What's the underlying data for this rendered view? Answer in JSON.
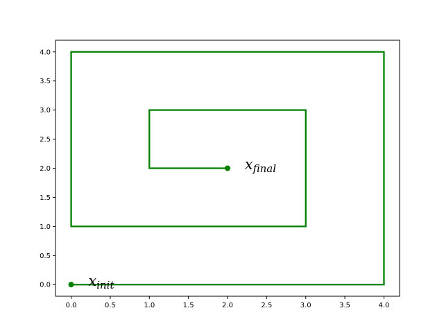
{
  "chart_data": {
    "type": "line",
    "title": "",
    "xlabel": "",
    "ylabel": "",
    "xlim": [
      -0.2,
      4.2
    ],
    "ylim": [
      -0.2,
      4.2
    ],
    "xticks": [
      0.0,
      0.5,
      1.0,
      1.5,
      2.0,
      2.5,
      3.0,
      3.5,
      4.0
    ],
    "yticks": [
      0.0,
      0.5,
      1.0,
      1.5,
      2.0,
      2.5,
      3.0,
      3.5,
      4.0
    ],
    "xtick_labels": [
      "0.0",
      "0.5",
      "1.0",
      "1.5",
      "2.0",
      "2.5",
      "3.0",
      "3.5",
      "4.0"
    ],
    "ytick_labels": [
      "0.0",
      "0.5",
      "1.0",
      "1.5",
      "2.0",
      "2.5",
      "3.0",
      "3.5",
      "4.0"
    ],
    "grid": false,
    "legend": "none",
    "color": "#008000",
    "series": [
      {
        "x": [
          0,
          4,
          4,
          0,
          0,
          3,
          3,
          1,
          1,
          2
        ],
        "y": [
          0,
          0,
          4,
          4,
          1,
          1,
          3,
          3,
          2,
          2
        ]
      }
    ],
    "markers": [
      {
        "x": 0,
        "y": 0
      },
      {
        "x": 2,
        "y": 2
      }
    ],
    "annotations": [
      {
        "base": "x",
        "sub": "init",
        "x": 0.22,
        "y": -0.02
      },
      {
        "base": "x",
        "sub": "final",
        "x": 2.22,
        "y": 1.98
      }
    ]
  }
}
